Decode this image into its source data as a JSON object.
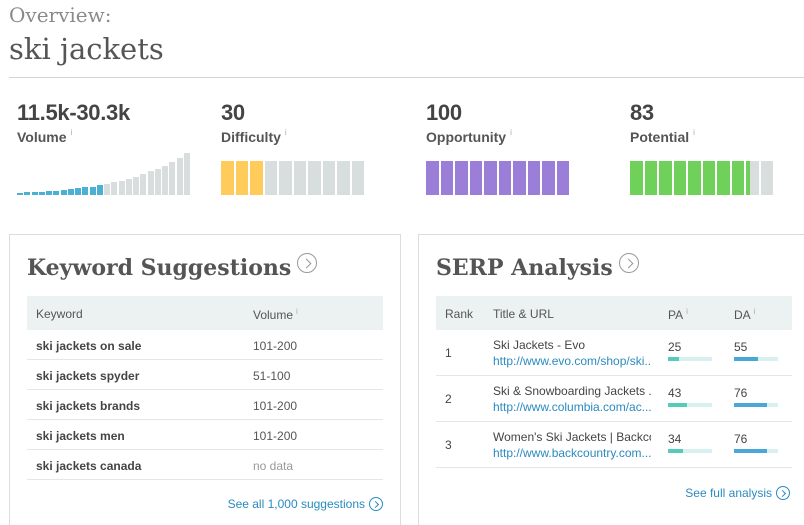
{
  "header": {
    "overview": "Overview:",
    "keyword": "ski jackets"
  },
  "metrics": [
    {
      "value": "11.5k-30.3k",
      "label": "Volume",
      "info": "i",
      "bars": [
        0.05,
        0.06,
        0.07,
        0.08,
        0.09,
        0.1,
        0.12,
        0.14,
        0.16,
        0.18,
        0.2,
        0.23,
        0.26,
        0.3,
        0.34,
        0.39,
        0.44,
        0.5,
        0.56,
        0.63,
        0.7,
        0.78,
        0.87,
        1.0
      ],
      "blue_count": 12,
      "blue": "#4ab0d4",
      "grey": "#d8dddd"
    },
    {
      "value": "30",
      "label": "Difficulty",
      "info": "i",
      "segments": 10,
      "filled": 3,
      "color": "#ffcc5c"
    },
    {
      "value": "100",
      "label": "Opportunity",
      "info": "i",
      "segments": 10,
      "filled": 10,
      "color": "#9b7ed8"
    },
    {
      "value": "83",
      "label": "Potential",
      "info": "i",
      "segments": 10,
      "filled": 8.3,
      "color": "#6fd05a"
    }
  ],
  "keyword_suggestions": {
    "title": "Keyword Suggestions",
    "headers": {
      "keyword": "Keyword",
      "volume": "Volume",
      "info": "i"
    },
    "rows": [
      {
        "keyword": "ski jackets on sale",
        "volume": "101-200"
      },
      {
        "keyword": "ski jackets spyder",
        "volume": "51-100"
      },
      {
        "keyword": "ski jackets brands",
        "volume": "101-200"
      },
      {
        "keyword": "ski jackets men",
        "volume": "101-200"
      },
      {
        "keyword": "ski jackets canada",
        "volume": "no data"
      }
    ],
    "see_all": "See all 1,000 suggestions"
  },
  "serp_analysis": {
    "title": "SERP Analysis",
    "headers": {
      "rank": "Rank",
      "title_url": "Title & URL",
      "pa": "PA",
      "da": "DA",
      "info": "i"
    },
    "rows": [
      {
        "rank": "1",
        "title": "Ski Jackets - Evo",
        "url": "http://www.evo.com/shop/ski...",
        "pa": 25,
        "da": 55
      },
      {
        "rank": "2",
        "title": "Ski & Snowboarding Jackets ...",
        "url": "http://www.columbia.com/ac...",
        "pa": 43,
        "da": 76
      },
      {
        "rank": "3",
        "title": "Women's Ski Jackets | Backco...",
        "url": "http://www.backcountry.com...",
        "pa": 34,
        "da": 76
      }
    ],
    "see_full": "See full analysis",
    "pa_color": "#55ccb8",
    "da_color": "#4aa8d8"
  }
}
